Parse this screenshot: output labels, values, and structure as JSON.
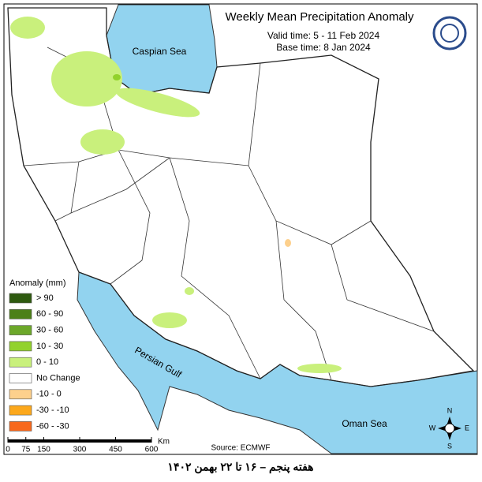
{
  "header": {
    "title": "Weekly Mean Precipitation Anomaly",
    "valid_time": "Valid time: 5 - 11 Feb 2024",
    "base_time": "Base time: 8 Jan 2024"
  },
  "labels": {
    "caspian": "Caspian Sea",
    "gulf": "Persian Gulf",
    "oman": "Oman Sea"
  },
  "legend": {
    "title": "Anomaly (mm)",
    "items": [
      {
        "label": "> 90",
        "color": "#2e5a10"
      },
      {
        "label": "60 - 90",
        "color": "#4c8018"
      },
      {
        "label": "30 - 60",
        "color": "#6ca82a"
      },
      {
        "label": "10 - 30",
        "color": "#92d22c"
      },
      {
        "label": "0 - 10",
        "color": "#c9f07c"
      },
      {
        "label": "No Change",
        "color": "#ffffff"
      },
      {
        "label": "-10 - 0",
        "color": "#fdd08c"
      },
      {
        "label": "-30 - -10",
        "color": "#fca81c"
      },
      {
        "label": "-60 - -30",
        "color": "#f8681c"
      }
    ]
  },
  "source": "Source: ECMWF",
  "scale": {
    "ticks": [
      0,
      75,
      150,
      300,
      450,
      600
    ],
    "unit": "Km"
  },
  "compass": {
    "n": "N",
    "s": "S",
    "e": "E",
    "w": "W"
  },
  "footer": "هفته پنجم – ۱۶ تا ۲۲ بهمن ۱۴۰۲"
}
